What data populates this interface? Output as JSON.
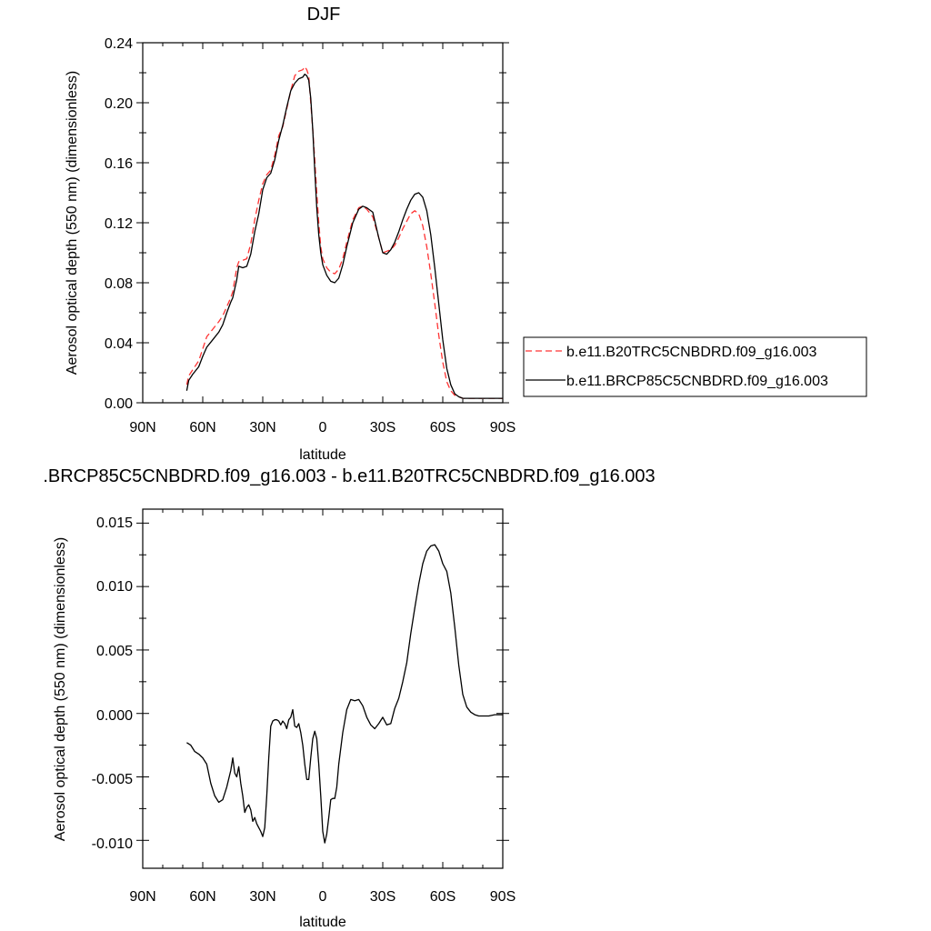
{
  "chart_data": [
    {
      "type": "line",
      "title": "DJF",
      "xlabel": "latitude",
      "ylabel": "Aerosol optical depth (550 nm) (dimensionless)",
      "xlim": [
        90,
        -90
      ],
      "ylim": [
        0.0,
        0.24
      ],
      "xticks": [
        90,
        60,
        30,
        0,
        -30,
        -60,
        -90
      ],
      "xtick_labels": [
        "90N",
        "60N",
        "30N",
        "0",
        "30S",
        "60S",
        "90S"
      ],
      "yticks": [
        0.0,
        0.04,
        0.08,
        0.12,
        0.16,
        0.2,
        0.24
      ],
      "ytick_labels": [
        "0.00",
        "0.04",
        "0.08",
        "0.12",
        "0.16",
        "0.20",
        "0.24"
      ],
      "grid": false,
      "legend_position": "right",
      "series": [
        {
          "name": "b.e11.B20TRC5CNBDRD.f09_g16.003",
          "color": "#ff3333",
          "dash": "dashed",
          "x": [
            68,
            67,
            65,
            62,
            60,
            58,
            55,
            52,
            50,
            48,
            46,
            45,
            43,
            42,
            40,
            38,
            36,
            34,
            32,
            30,
            28,
            26,
            24,
            22,
            20,
            18,
            16,
            14,
            12,
            10,
            9,
            8,
            7,
            6,
            5,
            4,
            3,
            2,
            1,
            0,
            -2,
            -4,
            -6,
            -8,
            -10,
            -12,
            -15,
            -18,
            -20,
            -22,
            -25,
            -28,
            -30,
            -32,
            -34,
            -36,
            -38,
            -40,
            -42,
            -44,
            -46,
            -48,
            -50,
            -52,
            -54,
            -56,
            -58,
            -60,
            -62,
            -64,
            -66,
            -68,
            -70,
            -72,
            -74,
            -76,
            -78,
            -80,
            -83,
            -86,
            -90
          ],
          "values": [
            0.012,
            0.018,
            0.022,
            0.028,
            0.036,
            0.044,
            0.049,
            0.054,
            0.058,
            0.064,
            0.07,
            0.074,
            0.09,
            0.094,
            0.095,
            0.096,
            0.106,
            0.122,
            0.135,
            0.146,
            0.152,
            0.155,
            0.165,
            0.178,
            0.184,
            0.196,
            0.208,
            0.218,
            0.221,
            0.222,
            0.224,
            0.222,
            0.218,
            0.2,
            0.182,
            0.162,
            0.14,
            0.12,
            0.104,
            0.096,
            0.09,
            0.087,
            0.086,
            0.089,
            0.096,
            0.107,
            0.122,
            0.13,
            0.131,
            0.129,
            0.124,
            0.11,
            0.1,
            0.101,
            0.102,
            0.105,
            0.11,
            0.116,
            0.121,
            0.126,
            0.128,
            0.126,
            0.118,
            0.104,
            0.086,
            0.066,
            0.045,
            0.027,
            0.014,
            0.008,
            0.005,
            0.004,
            0.003,
            0.003,
            0.003,
            0.003,
            0.003,
            0.003,
            0.003,
            0.003,
            0.003
          ]
        },
        {
          "name": "b.e11.BRCP85C5CNBDRD.f09_g16.003",
          "color": "#000000",
          "dash": "solid",
          "x": [
            68,
            67,
            65,
            62,
            60,
            58,
            55,
            52,
            50,
            48,
            46,
            45,
            43,
            42,
            40,
            38,
            36,
            34,
            32,
            30,
            28,
            26,
            24,
            22,
            20,
            18,
            16,
            14,
            12,
            10,
            9,
            8,
            7,
            6,
            5,
            4,
            3,
            2,
            1,
            0,
            -2,
            -4,
            -6,
            -8,
            -10,
            -12,
            -15,
            -18,
            -20,
            -22,
            -25,
            -28,
            -30,
            -32,
            -34,
            -36,
            -38,
            -40,
            -42,
            -44,
            -46,
            -48,
            -50,
            -52,
            -54,
            -56,
            -58,
            -60,
            -62,
            -64,
            -66,
            -68,
            -70,
            -72,
            -74,
            -76,
            -78,
            -80,
            -83,
            -86,
            -90
          ],
          "values": [
            0.008,
            0.015,
            0.019,
            0.024,
            0.031,
            0.037,
            0.042,
            0.047,
            0.052,
            0.06,
            0.067,
            0.07,
            0.082,
            0.091,
            0.09,
            0.091,
            0.099,
            0.114,
            0.126,
            0.142,
            0.15,
            0.153,
            0.162,
            0.175,
            0.185,
            0.197,
            0.208,
            0.213,
            0.216,
            0.217,
            0.219,
            0.218,
            0.215,
            0.203,
            0.182,
            0.155,
            0.13,
            0.112,
            0.1,
            0.092,
            0.085,
            0.081,
            0.08,
            0.083,
            0.092,
            0.104,
            0.12,
            0.129,
            0.131,
            0.13,
            0.127,
            0.11,
            0.1,
            0.099,
            0.102,
            0.107,
            0.114,
            0.122,
            0.129,
            0.135,
            0.139,
            0.14,
            0.137,
            0.128,
            0.112,
            0.09,
            0.066,
            0.042,
            0.023,
            0.012,
            0.006,
            0.004,
            0.003,
            0.003,
            0.003,
            0.003,
            0.003,
            0.003,
            0.003,
            0.003,
            0.003
          ]
        }
      ]
    },
    {
      "type": "line",
      "title": ".BRCP85C5CNBDRD.f09_g16.003 - b.e11.B20TRC5CNBDRD.f09_g16.003",
      "xlabel": "latitude",
      "ylabel": "Aerosol optical depth (550 nm) (dimensionless)",
      "xlim": [
        90,
        -90
      ],
      "ylim": [
        -0.0122,
        0.0161
      ],
      "xticks": [
        90,
        60,
        30,
        0,
        -30,
        -60,
        -90
      ],
      "xtick_labels": [
        "90N",
        "60N",
        "30N",
        "0",
        "30S",
        "60S",
        "90S"
      ],
      "yticks": [
        -0.01,
        -0.005,
        0.0,
        0.005,
        0.01,
        0.015
      ],
      "ytick_labels": [
        "-0.010",
        "-0.005",
        "0.000",
        "0.005",
        "0.010",
        "0.015"
      ],
      "grid": false,
      "series": [
        {
          "color": "#000000",
          "dash": "solid",
          "x": [
            68,
            66,
            64,
            62,
            60,
            58,
            56,
            54,
            52,
            50,
            48,
            46,
            45,
            44,
            43,
            42,
            41,
            40,
            39,
            38,
            37,
            36,
            35,
            34,
            33,
            32,
            31,
            30,
            29,
            28,
            27,
            26,
            25,
            24,
            23,
            22,
            21,
            20,
            19,
            18,
            17,
            16,
            15,
            14,
            13,
            12,
            11,
            10,
            9,
            8,
            7,
            6,
            5,
            4,
            3,
            2,
            1,
            0,
            -1,
            -2,
            -3,
            -4,
            -5,
            -6,
            -7,
            -8,
            -10,
            -12,
            -14,
            -16,
            -18,
            -20,
            -22,
            -24,
            -26,
            -28,
            -30,
            -32,
            -34,
            -36,
            -38,
            -40,
            -42,
            -44,
            -46,
            -48,
            -50,
            -52,
            -54,
            -56,
            -58,
            -60,
            -62,
            -64,
            -66,
            -68,
            -70,
            -72,
            -74,
            -76,
            -78,
            -80,
            -83,
            -86,
            -90
          ],
          "values": [
            -0.0023,
            -0.0025,
            -0.003,
            -0.0032,
            -0.0035,
            -0.004,
            -0.0055,
            -0.0065,
            -0.007,
            -0.0068,
            -0.0058,
            -0.0045,
            -0.0035,
            -0.0047,
            -0.005,
            -0.0042,
            -0.0055,
            -0.0065,
            -0.0078,
            -0.0074,
            -0.0072,
            -0.0076,
            -0.0085,
            -0.0082,
            -0.0087,
            -0.009,
            -0.0093,
            -0.0097,
            -0.009,
            -0.0065,
            -0.0035,
            -0.001,
            -0.0006,
            -0.0005,
            -0.0005,
            -0.0006,
            -0.0009,
            -0.0006,
            -0.0008,
            -0.0012,
            -0.0005,
            -0.0003,
            0.0003,
            -0.001,
            -0.0011,
            -0.0008,
            -0.0015,
            -0.0025,
            -0.004,
            -0.0052,
            -0.0052,
            -0.0035,
            -0.002,
            -0.0014,
            -0.002,
            -0.004,
            -0.0065,
            -0.0093,
            -0.0102,
            -0.0095,
            -0.0082,
            -0.0068,
            -0.0067,
            -0.0067,
            -0.0058,
            -0.004,
            -0.0015,
            0.0003,
            0.0011,
            0.001,
            0.0011,
            0.0006,
            -0.0003,
            -0.0009,
            -0.0012,
            -0.0008,
            -0.0003,
            -0.0009,
            -0.0008,
            0.0004,
            0.0012,
            0.0025,
            0.004,
            0.0063,
            0.0083,
            0.0102,
            0.0118,
            0.0128,
            0.0132,
            0.0133,
            0.0128,
            0.0118,
            0.0112,
            0.0095,
            0.0068,
            0.0038,
            0.0015,
            0.0005,
            0.0001,
            -0.0001,
            -0.0002,
            -0.0002,
            -0.0002,
            -0.0001,
            -0.0001
          ]
        }
      ]
    }
  ]
}
